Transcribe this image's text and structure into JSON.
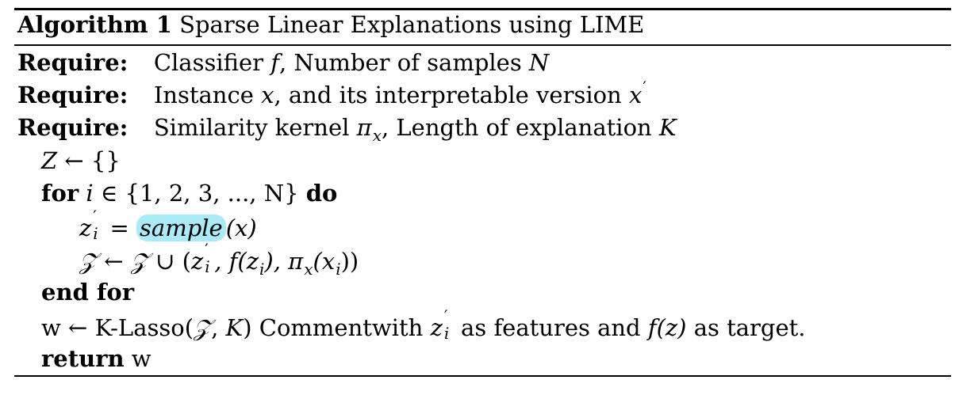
{
  "algorithm": {
    "label": "Algorithm 1",
    "title": "Sparse Linear Explanations using LIME"
  },
  "require": {
    "keyword": "Require:",
    "line1": {
      "a": "Classifier ",
      "f": "f",
      "b": ", Number of samples ",
      "n": "N"
    },
    "line2": {
      "a": "Instance ",
      "x": "x",
      "b": ", and its interpretable version ",
      "x2": "x",
      "prime": "′"
    },
    "line3": {
      "a": "Similarity kernel ",
      "pi": "π",
      "pisub": "x",
      "b": ", Length of explanation ",
      "k": "K"
    }
  },
  "body": {
    "init": {
      "z": "Z",
      "arrow": " ← ",
      "braces": "{}"
    },
    "for": {
      "kw": "for",
      "i": "i",
      "in": " ∈ ",
      "set": "{1, 2, 3, ..., N}",
      "do": "do"
    },
    "sample": {
      "z": "z",
      "prime": "′",
      "sub": "i",
      "eq": " = ",
      "fn": "sample",
      "arg": "(x)"
    },
    "union": {
      "zs": "𝒵",
      "arrow": " ← ",
      "zs2": "𝒵",
      "cup": " ∪ (",
      "z": "z",
      "prime": "′",
      "sub": "i",
      "rest1": ", f(z",
      "rest1sub": "i",
      "rest2": "), π",
      "pisub": "x",
      "rest3": "(x",
      "rest3sub": "i",
      "rest4": "))"
    },
    "endfor": "end for",
    "lasso": {
      "w": "w",
      "arrow": " ← ",
      "fn": "K-Lasso(",
      "zs": "𝒵",
      "mid": ", ",
      "k": "K",
      "close": ")",
      "comment": " Commentwith ",
      "z": "z",
      "prime": "′",
      "sub": "i",
      "tail1": " as features and ",
      "fz": "f(z)",
      "tail2": " as target."
    },
    "return": {
      "kw": "return",
      "w": "w"
    }
  }
}
